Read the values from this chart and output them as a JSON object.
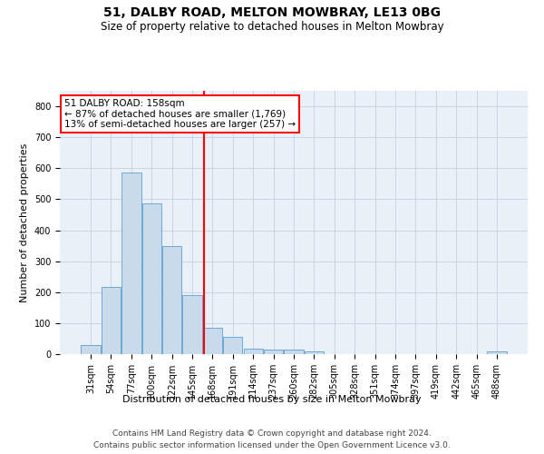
{
  "title": "51, DALBY ROAD, MELTON MOWBRAY, LE13 0BG",
  "subtitle": "Size of property relative to detached houses in Melton Mowbray",
  "xlabel": "Distribution of detached houses by size in Melton Mowbray",
  "ylabel": "Number of detached properties",
  "categories": [
    "31sqm",
    "54sqm",
    "77sqm",
    "100sqm",
    "122sqm",
    "145sqm",
    "168sqm",
    "191sqm",
    "214sqm",
    "237sqm",
    "260sqm",
    "282sqm",
    "305sqm",
    "328sqm",
    "351sqm",
    "374sqm",
    "397sqm",
    "419sqm",
    "442sqm",
    "465sqm",
    "488sqm"
  ],
  "values": [
    30,
    218,
    587,
    487,
    350,
    190,
    85,
    55,
    18,
    15,
    15,
    10,
    0,
    0,
    0,
    0,
    0,
    0,
    0,
    0,
    10
  ],
  "bar_color": "#c9daea",
  "bar_edge_color": "#5a9fd4",
  "bar_edge_width": 0.6,
  "grid_color": "#c8d4e4",
  "bg_color": "#eaf0f8",
  "annotation_text": "51 DALBY ROAD: 158sqm\n← 87% of detached houses are smaller (1,769)\n13% of semi-detached houses are larger (257) →",
  "annotation_box_color": "white",
  "annotation_box_edge_color": "red",
  "vline_color": "red",
  "ylim": [
    0,
    850
  ],
  "yticks": [
    0,
    100,
    200,
    300,
    400,
    500,
    600,
    700,
    800
  ],
  "footnote1": "Contains HM Land Registry data © Crown copyright and database right 2024.",
  "footnote2": "Contains public sector information licensed under the Open Government Licence v3.0.",
  "title_fontsize": 10,
  "subtitle_fontsize": 8.5,
  "xlabel_fontsize": 8,
  "ylabel_fontsize": 8,
  "tick_fontsize": 7,
  "annotation_fontsize": 7.5,
  "footnote_fontsize": 6.5
}
